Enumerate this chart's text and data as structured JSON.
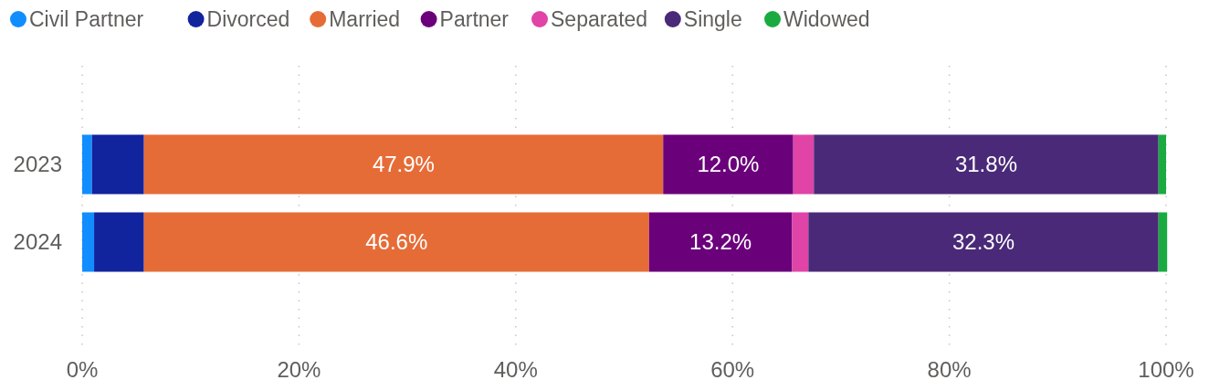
{
  "chart_data": {
    "type": "bar",
    "orientation": "horizontal",
    "stacked": true,
    "categories": [
      "2023",
      "2024"
    ],
    "xlim": [
      0,
      100
    ],
    "xticks": [
      {
        "value": 0,
        "label": "0%"
      },
      {
        "value": 20,
        "label": "20%"
      },
      {
        "value": 40,
        "label": "40%"
      },
      {
        "value": 60,
        "label": "60%"
      },
      {
        "value": 80,
        "label": "80%"
      },
      {
        "value": 100,
        "label": "100%"
      }
    ],
    "grid": "x",
    "legend": "top left",
    "marker": "circle",
    "series": [
      {
        "name": "Civil Partner",
        "color": "#118dff",
        "values": [
          0.9,
          1.1
        ]
      },
      {
        "name": "Divorced",
        "color": "#12239e",
        "values": [
          4.8,
          4.6
        ]
      },
      {
        "name": "Married",
        "color": "#e66c37",
        "values": [
          47.9,
          46.6
        ],
        "value_labels": [
          "47.9%",
          "46.6%"
        ]
      },
      {
        "name": "Partner",
        "color": "#6b007b",
        "values": [
          12.0,
          13.2
        ],
        "value_labels": [
          "12.0%",
          "13.2%"
        ]
      },
      {
        "name": "Separated",
        "color": "#e044a7",
        "values": [
          1.9,
          1.5
        ]
      },
      {
        "name": "Single",
        "color": "#4a2a78",
        "values": [
          31.8,
          32.3
        ],
        "value_labels": [
          "31.8%",
          "32.3%"
        ]
      },
      {
        "name": "Widowed",
        "color": "#1aab40",
        "values": [
          0.7,
          0.8
        ]
      }
    ]
  }
}
